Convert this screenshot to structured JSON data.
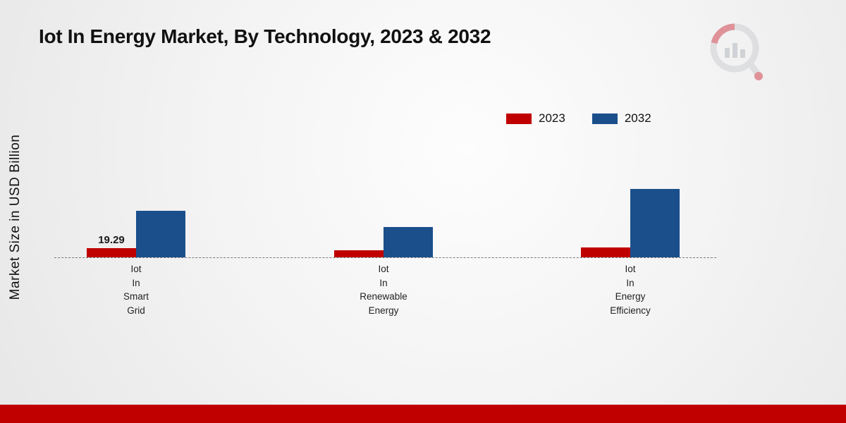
{
  "title": "Iot In Energy Market, By Technology, 2023 & 2032",
  "y_axis_label": "Market Size in USD Billion",
  "legend": [
    {
      "label": "2023",
      "color": "#c00000"
    },
    {
      "label": "2032",
      "color": "#1b4f8c"
    }
  ],
  "chart_data": {
    "type": "bar",
    "title": "Iot In Energy Market, By Technology, 2023 & 2032",
    "ylabel": "Market Size in USD Billion",
    "units": "USD Billion",
    "categories": [
      "Iot In Smart Grid",
      "Iot In Renewable Energy",
      "Iot In Energy Efficiency"
    ],
    "categories_lines": [
      [
        "Iot",
        "In",
        "Smart",
        "Grid"
      ],
      [
        "Iot",
        "In",
        "Renewable",
        "Energy"
      ],
      [
        "Iot",
        "In",
        "Energy",
        "Efficiency"
      ]
    ],
    "series": [
      {
        "name": "2023",
        "color": "#c00000",
        "values": [
          19.29,
          15,
          21
        ]
      },
      {
        "name": "2032",
        "color": "#1b4f8c",
        "values": [
          98,
          64,
          144
        ]
      }
    ],
    "data_labels": [
      [
        "19.29",
        "",
        ""
      ],
      [
        "",
        "",
        ""
      ]
    ],
    "baseline_value": 0,
    "gridlines": false,
    "legend_position": "top-right"
  },
  "colors": {
    "footer": "#c00000",
    "baseline": "#7a7a7a",
    "series_2023": "#c00000",
    "series_2032": "#1b4f8c"
  }
}
